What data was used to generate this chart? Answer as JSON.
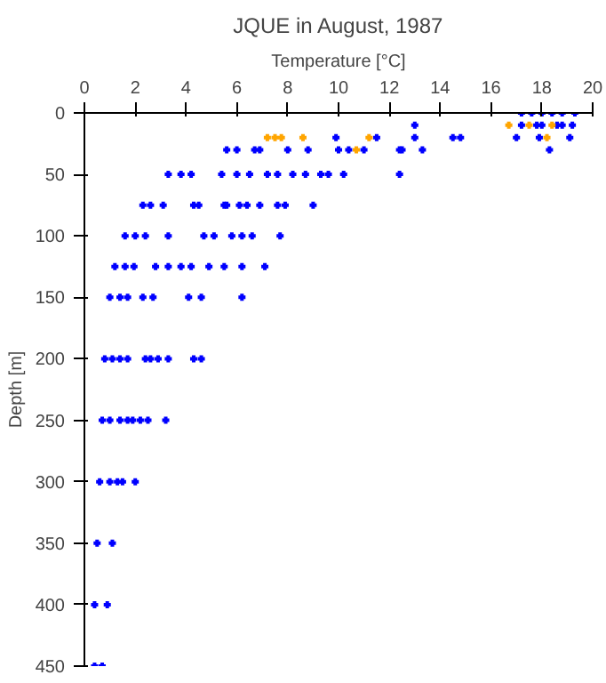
{
  "chart_data": {
    "type": "scatter",
    "title": "JQUE in August, 1987",
    "xlabel": "Temperature [°C]",
    "ylabel": "Depth [m]",
    "xlim": [
      0,
      20
    ],
    "ylim": [
      450,
      0
    ],
    "xticks": [
      0,
      2,
      4,
      6,
      8,
      10,
      12,
      14,
      16,
      18,
      20
    ],
    "yticks": [
      0,
      50,
      100,
      150,
      200,
      250,
      300,
      350,
      400,
      450
    ],
    "grid": false,
    "marker": "cross",
    "series": [
      {
        "color": "#0000ff",
        "x": [
          17.2,
          17.6,
          18.0,
          18.4,
          18.8,
          19.3,
          13.0,
          17.2,
          17.8,
          18.0,
          18.6,
          18.8,
          19.2,
          9.9,
          11.5,
          13.0,
          14.5,
          14.8,
          17.0,
          17.9,
          19.1,
          5.6,
          6.0,
          6.7,
          6.9,
          8.0,
          8.8,
          10.0,
          10.4,
          11.0,
          12.4,
          12.5,
          13.3,
          18.3,
          3.3,
          3.8,
          4.2,
          5.4,
          6.0,
          6.5,
          7.2,
          7.6,
          8.2,
          8.7,
          9.3,
          9.6,
          10.2,
          12.4,
          2.3,
          2.6,
          3.1,
          4.3,
          4.5,
          5.5,
          5.6,
          6.1,
          6.4,
          6.9,
          7.6,
          7.9,
          9.0,
          1.6,
          2.0,
          2.4,
          3.3,
          4.7,
          5.1,
          5.8,
          6.2,
          6.6,
          7.7,
          1.2,
          1.6,
          1.95,
          2.8,
          3.3,
          3.8,
          4.2,
          4.9,
          5.5,
          6.2,
          7.1,
          1.0,
          1.4,
          1.7,
          2.3,
          2.7,
          4.1,
          4.6,
          6.2,
          0.8,
          1.1,
          1.4,
          1.7,
          2.4,
          2.6,
          2.9,
          3.3,
          4.3,
          4.6,
          0.7,
          1.0,
          1.4,
          1.7,
          1.9,
          2.2,
          2.5,
          3.2,
          0.6,
          1.0,
          1.3,
          1.5,
          2.0,
          0.5,
          1.1,
          0.4,
          0.9,
          0.4,
          0.7
        ],
        "values": [
          0,
          0,
          0,
          0,
          0,
          0,
          10,
          10,
          10,
          10,
          10,
          10,
          10,
          20,
          20,
          20,
          20,
          20,
          20,
          20,
          20,
          30,
          30,
          30,
          30,
          30,
          30,
          30,
          30,
          30,
          30,
          30,
          30,
          30,
          50,
          50,
          50,
          50,
          50,
          50,
          50,
          50,
          50,
          50,
          50,
          50,
          50,
          50,
          75,
          75,
          75,
          75,
          75,
          75,
          75,
          75,
          75,
          75,
          75,
          75,
          75,
          100,
          100,
          100,
          100,
          100,
          100,
          100,
          100,
          100,
          100,
          125,
          125,
          125,
          125,
          125,
          125,
          125,
          125,
          125,
          125,
          125,
          150,
          150,
          150,
          150,
          150,
          150,
          150,
          150,
          200,
          200,
          200,
          200,
          200,
          200,
          200,
          200,
          200,
          200,
          250,
          250,
          250,
          250,
          250,
          250,
          250,
          250,
          300,
          300,
          300,
          300,
          300,
          350,
          350,
          400,
          400,
          450,
          450
        ]
      },
      {
        "color": "#ffa500",
        "x": [
          16.7,
          17.5,
          18.4,
          7.2,
          7.5,
          7.75,
          8.6,
          11.2,
          18.2,
          10.7
        ],
        "values": [
          10,
          10,
          10,
          20,
          20,
          20,
          20,
          20,
          20,
          30
        ]
      }
    ]
  }
}
